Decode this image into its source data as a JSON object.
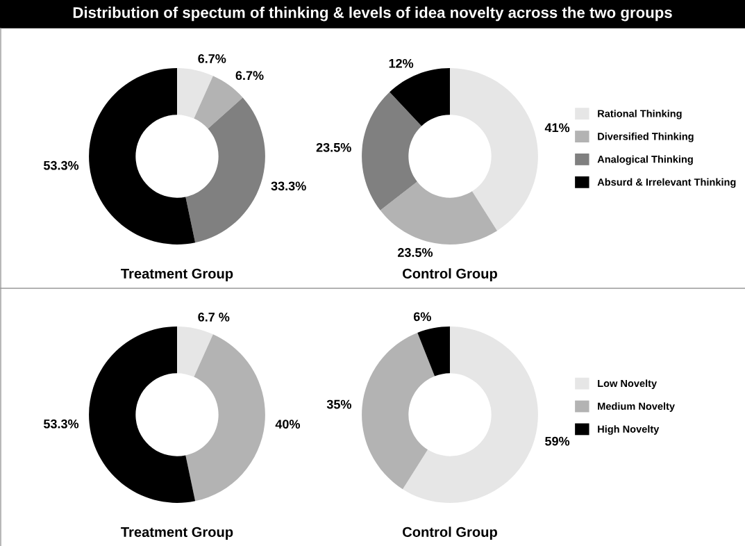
{
  "chart_data": [
    {
      "type": "donut",
      "title": "Distribution of spectum of thinking & levels of idea novelty across the two groups",
      "xlabel": "Treatment Group",
      "categories": [
        "Rational Thinking",
        "Diversified Thinking",
        "Analogical Thinking",
        "Absurd & Irrelevant Thinking"
      ],
      "values": [
        6.7,
        6.7,
        33.3,
        53.3
      ],
      "value_labels": [
        "6.7%",
        "6.7%",
        "33.3%",
        "53.3%"
      ],
      "colors": [
        "#e6e6e6",
        "#b3b3b3",
        "#808080",
        "#000000"
      ],
      "legend": "right"
    },
    {
      "type": "donut",
      "xlabel": "Control Group",
      "categories": [
        null,
        null,
        null,
        null
      ],
      "values": [
        41,
        23.5,
        23.5,
        12
      ],
      "value_labels": [
        "41%",
        "23.5%",
        "23.5%",
        "12%"
      ],
      "colors": [
        "#e6e6e6",
        "#b3b3b3",
        "#808080",
        "#000000"
      ],
      "legend": false
    },
    {
      "type": "donut",
      "xlabel": "Treatment Group",
      "categories": [
        "Low Novelty",
        "Medium Novelty",
        "High Novelty"
      ],
      "values": [
        6.7,
        40,
        53.3
      ],
      "value_labels": [
        "6.7 %",
        "40%",
        "53.3%"
      ],
      "colors": [
        "#e6e6e6",
        "#b3b3b3",
        "#000000"
      ],
      "legend": "right"
    },
    {
      "type": "donut",
      "xlabel": "Control Group",
      "categories": [
        null,
        null,
        null
      ],
      "values": [
        59,
        35,
        6
      ],
      "value_labels": [
        "59%",
        "35%",
        "6%"
      ],
      "colors": [
        "#e6e6e6",
        "#b3b3b3",
        "#000000"
      ],
      "legend": false
    }
  ]
}
